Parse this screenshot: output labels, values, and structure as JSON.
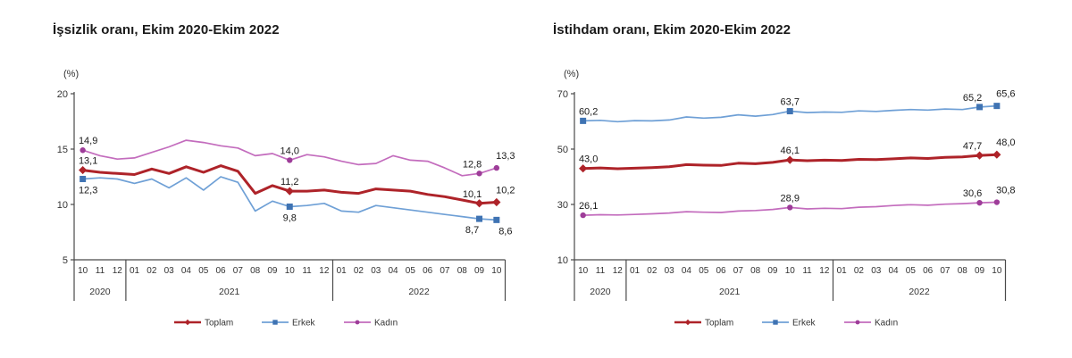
{
  "page": {
    "background": "#ffffff"
  },
  "palette": {
    "axis_color": "#4a4a4a",
    "tick_text_color": "#333333",
    "data_label_color": "#1a1a1a",
    "title_color": "#1a1a1a"
  },
  "chart_data": [
    {
      "type": "line",
      "title": "İşsizlik oranı, Ekim 2020-Ekim 2022",
      "ylabel": "(%)",
      "ylim": [
        5,
        20
      ],
      "yticks": [
        20,
        15,
        10,
        5
      ],
      "grid": false,
      "legend_position": "bottom",
      "x_months": [
        "10",
        "11",
        "12",
        "01",
        "02",
        "03",
        "04",
        "05",
        "06",
        "07",
        "08",
        "09",
        "10",
        "11",
        "12",
        "01",
        "02",
        "03",
        "04",
        "05",
        "06",
        "07",
        "08",
        "09",
        "10"
      ],
      "year_groups": [
        {
          "label": "2020",
          "span": 3
        },
        {
          "label": "2021",
          "span": 12
        },
        {
          "label": "2022",
          "span": 10
        }
      ],
      "series": [
        {
          "name": "Toplam",
          "line_color": "#AE2329",
          "marker_color": "#AE2329",
          "marker": "diamond",
          "line_width": 3,
          "label_side": "above",
          "values": [
            13.1,
            12.9,
            12.8,
            12.7,
            13.2,
            12.8,
            13.4,
            12.9,
            13.5,
            13.0,
            11.0,
            11.7,
            11.2,
            11.2,
            11.3,
            11.1,
            11.0,
            11.4,
            11.3,
            11.2,
            10.9,
            10.7,
            10.4,
            10.1,
            10.2
          ],
          "point_labels": {
            "0": "13,1",
            "12": "11,2",
            "23": "10,1",
            "24": "10,2"
          }
        },
        {
          "name": "Erkek",
          "line_color": "#6FA0D6",
          "marker_color": "#3F73B3",
          "marker": "square",
          "line_width": 1.7,
          "label_side": "below",
          "values": [
            12.3,
            12.4,
            12.3,
            11.9,
            12.3,
            11.5,
            12.4,
            11.3,
            12.5,
            12.0,
            9.4,
            10.3,
            9.8,
            9.9,
            10.1,
            9.4,
            9.3,
            9.9,
            9.7,
            9.5,
            9.3,
            9.1,
            8.9,
            8.7,
            8.6
          ],
          "point_labels": {
            "0": "12,3",
            "12": "9,8",
            "23": "8,7",
            "24": "8,6"
          }
        },
        {
          "name": "Kadın",
          "line_color": "#C36CBD",
          "marker_color": "#9E3D99",
          "marker": "circle",
          "line_width": 1.7,
          "label_side": "above",
          "values": [
            14.9,
            14.4,
            14.1,
            14.2,
            14.7,
            15.2,
            15.8,
            15.6,
            15.3,
            15.1,
            14.4,
            14.6,
            14.0,
            14.5,
            14.3,
            13.9,
            13.6,
            13.7,
            14.4,
            14.0,
            13.9,
            13.3,
            12.6,
            12.8,
            13.3
          ],
          "point_labels": {
            "0": "14,9",
            "12": "14,0",
            "23": "12,8",
            "24": "13,3"
          }
        }
      ]
    },
    {
      "type": "line",
      "title": "İstihdam oranı, Ekim 2020-Ekim 2022",
      "ylabel": "(%)",
      "ylim": [
        10,
        70
      ],
      "yticks": [
        70,
        50,
        30,
        10
      ],
      "grid": false,
      "legend_position": "bottom",
      "x_months": [
        "10",
        "11",
        "12",
        "01",
        "02",
        "03",
        "04",
        "05",
        "06",
        "07",
        "08",
        "09",
        "10",
        "11",
        "12",
        "01",
        "02",
        "03",
        "04",
        "05",
        "06",
        "07",
        "08",
        "09",
        "10"
      ],
      "year_groups": [
        {
          "label": "2020",
          "span": 3
        },
        {
          "label": "2021",
          "span": 12
        },
        {
          "label": "2022",
          "span": 10
        }
      ],
      "series": [
        {
          "name": "Toplam",
          "line_color": "#AE2329",
          "marker_color": "#AE2329",
          "marker": "diamond",
          "line_width": 3,
          "label_side": "above",
          "values": [
            43.0,
            43.2,
            42.9,
            43.1,
            43.3,
            43.6,
            44.4,
            44.2,
            44.1,
            44.9,
            44.7,
            45.2,
            46.1,
            45.8,
            46.0,
            45.9,
            46.3,
            46.2,
            46.5,
            46.8,
            46.6,
            47.0,
            47.2,
            47.7,
            48.0
          ],
          "point_labels": {
            "0": "43,0",
            "12": "46,1",
            "23": "47,7",
            "24": "48,0"
          }
        },
        {
          "name": "Erkek",
          "line_color": "#6FA0D6",
          "marker_color": "#3F73B3",
          "marker": "square",
          "line_width": 1.7,
          "label_side": "above",
          "values": [
            60.2,
            60.4,
            59.9,
            60.3,
            60.2,
            60.5,
            61.6,
            61.2,
            61.5,
            62.4,
            61.9,
            62.5,
            63.7,
            63.2,
            63.4,
            63.3,
            63.8,
            63.6,
            64.0,
            64.3,
            64.1,
            64.5,
            64.3,
            65.2,
            65.6
          ],
          "point_labels": {
            "0": "60,2",
            "12": "63,7",
            "23": "65,2",
            "24": "65,6"
          }
        },
        {
          "name": "Kadın",
          "line_color": "#C36CBD",
          "marker_color": "#9E3D99",
          "marker": "circle",
          "line_width": 1.7,
          "label_side": "above",
          "values": [
            26.1,
            26.3,
            26.2,
            26.4,
            26.6,
            26.9,
            27.4,
            27.2,
            27.1,
            27.6,
            27.8,
            28.2,
            28.9,
            28.4,
            28.6,
            28.5,
            29.0,
            29.2,
            29.6,
            29.9,
            29.7,
            30.1,
            30.3,
            30.6,
            30.8
          ],
          "point_labels": {
            "0": "26,1",
            "12": "28,9",
            "23": "30,6",
            "24": "30,8"
          }
        }
      ]
    }
  ]
}
